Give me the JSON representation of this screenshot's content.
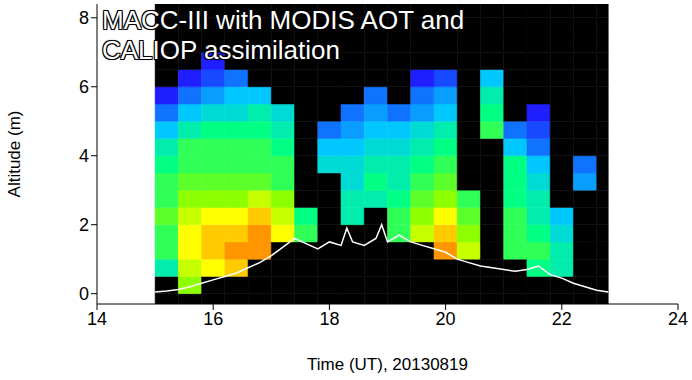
{
  "chart_data": {
    "type": "heatmap",
    "title": "MACC-III with MODIS AOT and CALIOP assimilation",
    "x_label": "Time (UT), 20130819",
    "y_label": "Altitude (m)",
    "xlim": [
      14,
      24
    ],
    "xticks": [
      14,
      16,
      18,
      20,
      22,
      24
    ],
    "ylim": [
      -0.3,
      8.4
    ],
    "yticks": [
      0,
      2,
      4,
      6,
      8
    ],
    "x_bins": [
      15.0,
      15.4,
      15.8,
      16.2,
      16.6,
      17.0,
      17.4,
      17.8,
      18.2,
      18.6,
      19.0,
      19.4,
      19.8,
      20.2,
      20.6,
      21.0,
      21.4,
      21.8,
      22.2,
      22.6,
      22.8
    ],
    "y_bins": [
      -0.3,
      0,
      0.5,
      1,
      1.5,
      2,
      2.5,
      3,
      3.5,
      4,
      4.5,
      5,
      5.5,
      6,
      6.5,
      7,
      7.5,
      8,
      8.4
    ],
    "zlim": [
      0,
      1
    ],
    "z": [
      [
        null,
        null,
        0.5,
        0.6,
        0.6,
        0.65,
        0.6,
        0.6,
        0.55,
        0.5,
        0.4,
        0.3,
        0.2,
        null,
        null,
        null,
        null,
        null
      ],
      [
        null,
        0.7,
        0.75,
        0.8,
        0.8,
        0.75,
        0.7,
        0.65,
        0.6,
        0.6,
        0.5,
        0.4,
        0.3,
        0.2,
        null,
        null,
        null,
        null
      ],
      [
        null,
        null,
        0.8,
        0.85,
        0.85,
        0.8,
        0.7,
        0.65,
        0.6,
        0.6,
        0.55,
        0.45,
        0.35,
        0.25,
        0.2,
        null,
        null,
        null
      ],
      [
        null,
        null,
        0.85,
        0.9,
        0.85,
        0.8,
        0.7,
        0.65,
        0.6,
        0.6,
        0.55,
        0.45,
        0.4,
        0.3,
        null,
        null,
        null,
        null
      ],
      [
        null,
        null,
        null,
        0.9,
        0.9,
        0.85,
        0.75,
        0.65,
        0.6,
        0.6,
        0.55,
        0.5,
        0.4,
        null,
        null,
        null,
        null,
        null
      ],
      [
        null,
        null,
        null,
        null,
        0.8,
        0.75,
        0.7,
        0.6,
        0.6,
        0.55,
        0.5,
        0.45,
        null,
        null,
        null,
        null,
        null,
        null
      ],
      [
        null,
        null,
        null,
        null,
        0.6,
        0.55,
        null,
        null,
        null,
        null,
        null,
        null,
        null,
        null,
        null,
        null,
        null,
        null
      ],
      [
        null,
        null,
        null,
        null,
        null,
        null,
        null,
        null,
        0.45,
        0.4,
        0.3,
        null,
        null,
        null,
        null,
        null,
        null,
        null
      ],
      [
        null,
        null,
        null,
        null,
        null,
        0.5,
        0.5,
        0.45,
        0.45,
        0.4,
        0.35,
        0.3,
        null,
        null,
        null,
        null,
        null,
        null
      ],
      [
        null,
        null,
        null,
        null,
        null,
        null,
        0.5,
        0.55,
        0.5,
        0.45,
        0.4,
        0.35,
        0.3,
        null,
        null,
        null,
        null,
        null
      ],
      [
        null,
        null,
        null,
        null,
        0.6,
        0.6,
        0.55,
        0.5,
        0.5,
        0.45,
        0.4,
        0.3,
        null,
        null,
        null,
        null,
        null,
        null
      ],
      [
        null,
        null,
        null,
        null,
        0.75,
        0.7,
        0.65,
        0.6,
        0.55,
        0.5,
        0.45,
        0.35,
        0.3,
        0.2,
        null,
        null,
        null,
        null
      ],
      [
        null,
        null,
        null,
        0.9,
        0.85,
        0.8,
        0.7,
        0.65,
        0.6,
        0.55,
        0.5,
        0.4,
        0.35,
        0.25,
        null,
        null,
        null,
        null
      ],
      [
        null,
        null,
        null,
        0.75,
        0.7,
        0.65,
        0.6,
        null,
        null,
        null,
        null,
        null,
        null,
        null,
        null,
        null,
        null,
        null
      ],
      [
        null,
        null,
        null,
        null,
        null,
        null,
        null,
        null,
        null,
        null,
        0.6,
        0.55,
        0.5,
        0.4,
        null,
        null,
        null,
        null
      ],
      [
        null,
        null,
        null,
        0.6,
        0.6,
        0.6,
        0.55,
        0.55,
        0.55,
        0.4,
        0.3,
        null,
        null,
        null,
        null,
        null,
        null,
        null
      ],
      [
        null,
        null,
        0.55,
        0.6,
        0.55,
        0.5,
        0.5,
        0.45,
        0.4,
        0.3,
        0.25,
        0.2,
        null,
        null,
        null,
        null,
        null,
        null
      ],
      [
        null,
        null,
        0.5,
        0.5,
        0.45,
        0.4,
        null,
        null,
        null,
        null,
        null,
        null,
        null,
        null,
        null,
        null,
        null,
        null
      ],
      [
        null,
        null,
        null,
        null,
        null,
        null,
        null,
        0.35,
        0.3,
        null,
        null,
        null,
        null,
        null,
        null,
        null,
        null,
        null
      ],
      [
        null,
        null,
        null,
        null,
        null,
        null,
        null,
        null,
        null,
        null,
        null,
        null,
        null,
        null,
        null,
        null,
        null,
        null
      ]
    ],
    "series": [
      {
        "type": "line",
        "color": "#ffffff",
        "x": [
          15.0,
          15.2,
          15.4,
          15.6,
          15.8,
          16.0,
          16.2,
          16.4,
          16.6,
          16.8,
          17.0,
          17.2,
          17.4,
          17.6,
          17.8,
          18.0,
          18.2,
          18.3,
          18.4,
          18.6,
          18.8,
          18.9,
          19.0,
          19.2,
          19.4,
          19.6,
          19.8,
          20.0,
          20.2,
          20.4,
          20.6,
          20.8,
          21.0,
          21.2,
          21.4,
          21.6,
          21.8,
          22.0,
          22.2,
          22.4,
          22.6,
          22.8
        ],
        "values": [
          0.05,
          0.08,
          0.12,
          0.2,
          0.3,
          0.4,
          0.5,
          0.6,
          0.75,
          0.9,
          1.1,
          1.35,
          1.6,
          1.45,
          1.3,
          1.5,
          1.4,
          1.9,
          1.5,
          1.4,
          1.6,
          2.0,
          1.5,
          1.7,
          1.5,
          1.4,
          1.3,
          1.2,
          1.0,
          0.9,
          0.8,
          0.75,
          0.7,
          0.65,
          0.7,
          0.8,
          0.55,
          0.45,
          0.3,
          0.2,
          0.1,
          0.05
        ]
      }
    ]
  }
}
